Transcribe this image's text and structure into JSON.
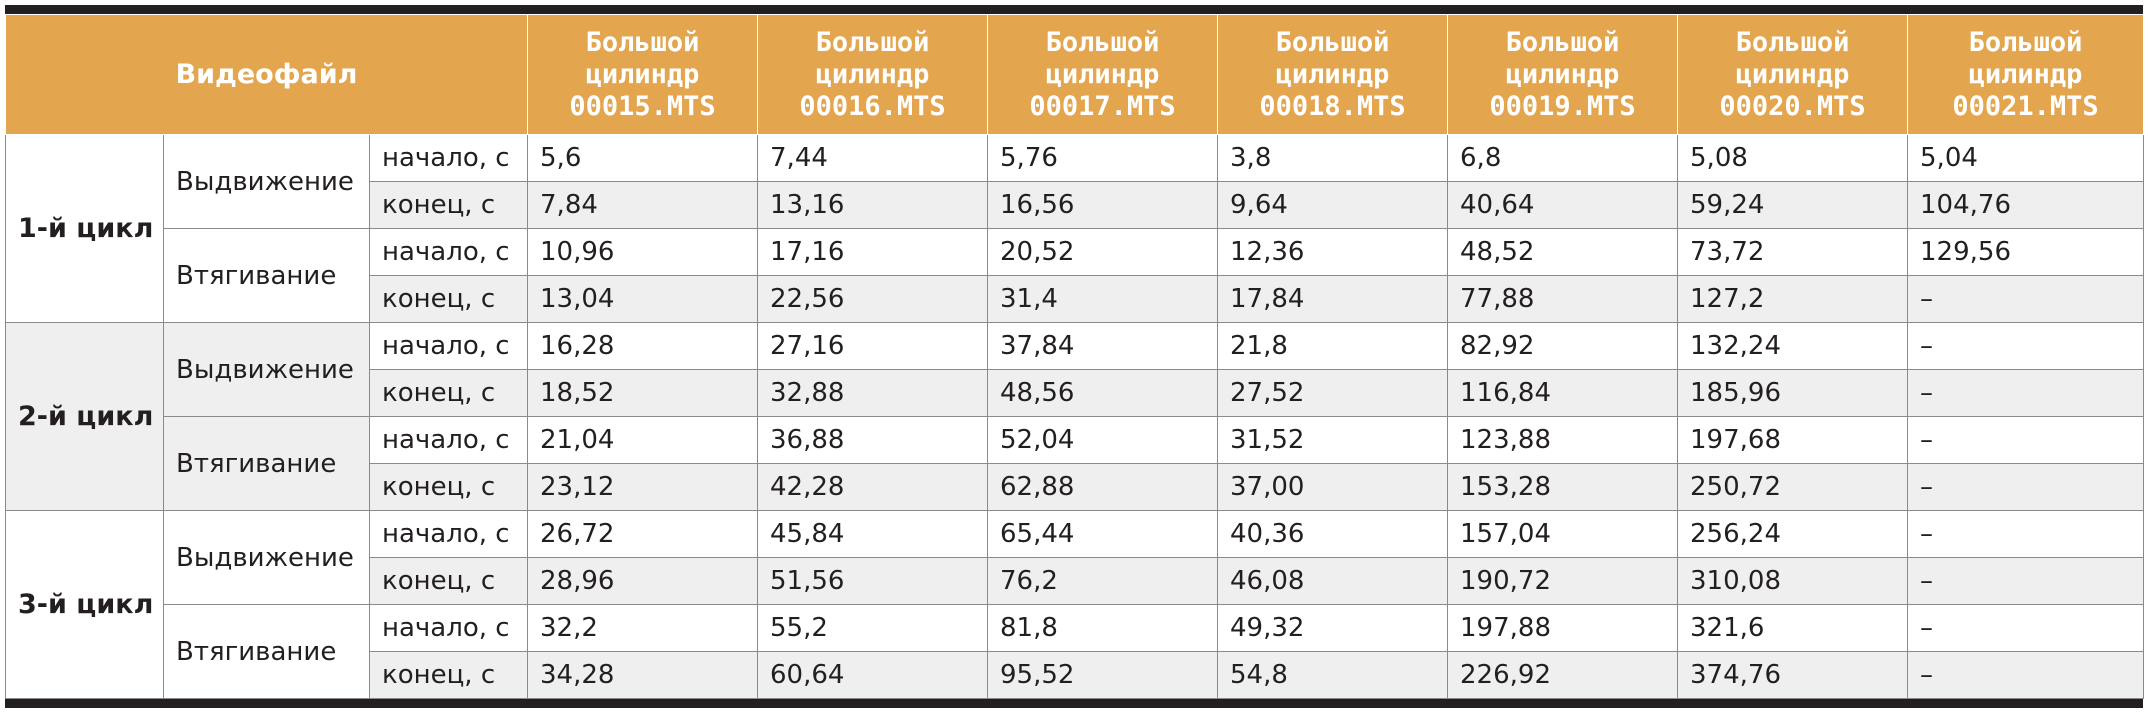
{
  "header": {
    "video_label": "Видеофайл",
    "columns": [
      {
        "line1": "Большой",
        "line2": "цилиндр",
        "line3": "00015.MTS"
      },
      {
        "line1": "Большой",
        "line2": "цилиндр",
        "line3": "00016.MTS"
      },
      {
        "line1": "Большой",
        "line2": "цилиндр",
        "line3": "00017.MTS"
      },
      {
        "line1": "Большой",
        "line2": "цилиндр",
        "line3": "00018.MTS"
      },
      {
        "line1": "Большой",
        "line2": "цилиндр",
        "line3": "00019.MTS"
      },
      {
        "line1": "Большой",
        "line2": "цилиндр",
        "line3": "00020.MTS"
      },
      {
        "line1": "Большой",
        "line2": "цилиндр",
        "line3": "00021.MTS"
      }
    ]
  },
  "cycles": [
    {
      "label": "1-й цикл",
      "phases": [
        {
          "label": "Выдвижение",
          "rows": [
            {
              "unit": "начало, с",
              "values": [
                "5,6",
                "7,44",
                "5,76",
                "3,8",
                "6,8",
                "5,08",
                "5,04"
              ]
            },
            {
              "unit": "конец, с",
              "values": [
                "7,84",
                "13,16",
                "16,56",
                "9,64",
                "40,64",
                "59,24",
                "104,76"
              ]
            }
          ]
        },
        {
          "label": "Втягивание",
          "rows": [
            {
              "unit": "начало, с",
              "values": [
                "10,96",
                "17,16",
                "20,52",
                "12,36",
                "48,52",
                "73,72",
                "129,56"
              ]
            },
            {
              "unit": "конец, с",
              "values": [
                "13,04",
                "22,56",
                "31,4",
                "17,84",
                "77,88",
                "127,2",
                "–"
              ]
            }
          ]
        }
      ]
    },
    {
      "label": "2-й цикл",
      "phases": [
        {
          "label": "Выдвижение",
          "rows": [
            {
              "unit": "начало, с",
              "values": [
                "16,28",
                "27,16",
                "37,84",
                "21,8",
                "82,92",
                "132,24",
                "–"
              ]
            },
            {
              "unit": "конец, с",
              "values": [
                "18,52",
                "32,88",
                "48,56",
                "27,52",
                "116,84",
                "185,96",
                "–"
              ]
            }
          ]
        },
        {
          "label": "Втягивание",
          "rows": [
            {
              "unit": "начало, с",
              "values": [
                "21,04",
                "36,88",
                "52,04",
                "31,52",
                "123,88",
                "197,68",
                "–"
              ]
            },
            {
              "unit": "конец, с",
              "values": [
                "23,12",
                "42,28",
                "62,88",
                "37,00",
                "153,28",
                "250,72",
                "–"
              ]
            }
          ]
        }
      ]
    },
    {
      "label": "3-й цикл",
      "phases": [
        {
          "label": "Выдвижение",
          "rows": [
            {
              "unit": "начало, с",
              "values": [
                "26,72",
                "45,84",
                "65,44",
                "40,36",
                "157,04",
                "256,24",
                "–"
              ]
            },
            {
              "unit": "конец, с",
              "values": [
                "28,96",
                "51,56",
                "76,2",
                "46,08",
                "190,72",
                "310,08",
                "–"
              ]
            }
          ]
        },
        {
          "label": "Втягивание",
          "rows": [
            {
              "unit": "начало, с",
              "values": [
                "32,2",
                "55,2",
                "81,8",
                "49,32",
                "197,88",
                "321,6",
                "–"
              ]
            },
            {
              "unit": "конец, с",
              "values": [
                "34,28",
                "60,64",
                "95,52",
                "54,8",
                "226,92",
                "374,76",
                "–"
              ]
            }
          ]
        }
      ]
    }
  ],
  "colors": {
    "header_bg": "#e3a64f",
    "row_shade": "#efefef",
    "rule": "#231f20"
  }
}
